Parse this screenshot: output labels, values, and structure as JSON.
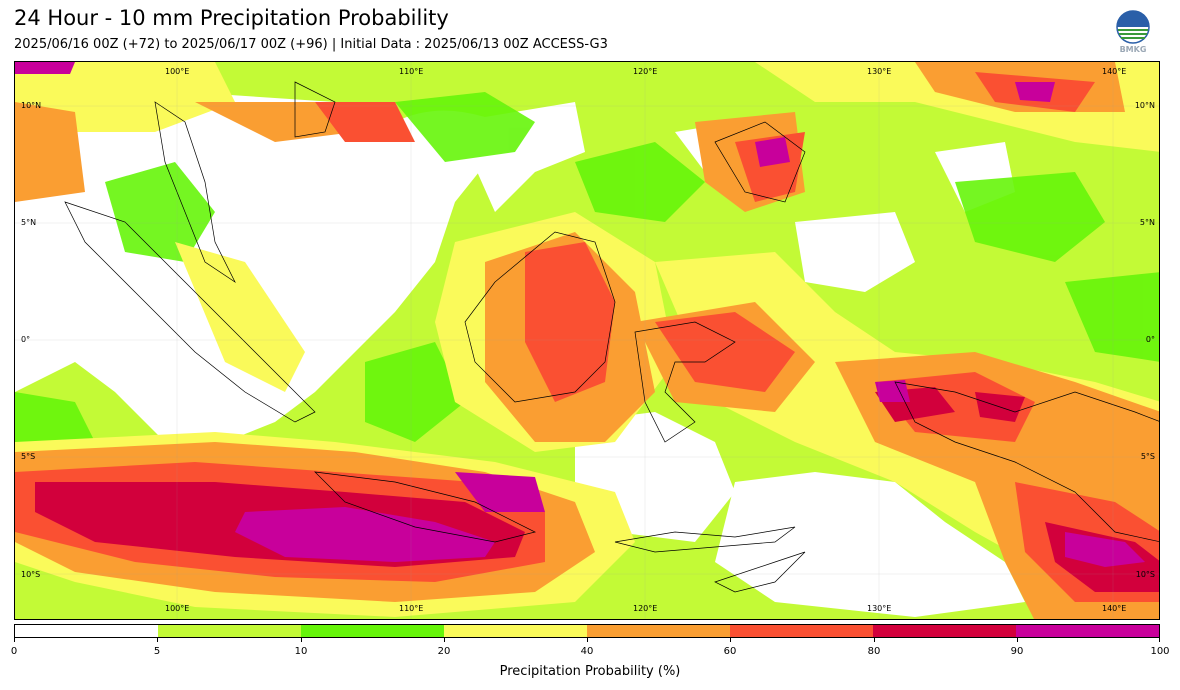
{
  "title": "24 Hour - 10 mm Precipitation Probability",
  "subtitle": "2025/06/16 00Z (+72) to 2025/06/17 00Z (+96) | Initial Data : 2025/06/13 00Z ACCESS-G3",
  "logo_text": "BMKG",
  "map": {
    "lon_labels": [
      "100°E",
      "110°E",
      "120°E",
      "130°E",
      "140°E"
    ],
    "lat_labels": [
      "10°N",
      "5°N",
      "0°",
      "5°S",
      "10°S"
    ],
    "colors": {
      "very_low": "#c3fa36",
      "low": "#66f50a",
      "mid": "#fafa5a",
      "moderate": "#fa9e32",
      "high": "#fa5032",
      "very_high": "#d2003c",
      "extreme": "#c8009b",
      "land_outline": "#000000"
    }
  },
  "colorbar": {
    "label": "Precipitation Probability (%)",
    "ticks": [
      "0",
      "5",
      "10",
      "20",
      "40",
      "60",
      "80",
      "90",
      "100"
    ],
    "colors": [
      "#ffffff",
      "#c3fa36",
      "#66f50a",
      "#fafa5a",
      "#fa9e32",
      "#fa5032",
      "#d2003c",
      "#c8009b"
    ]
  }
}
